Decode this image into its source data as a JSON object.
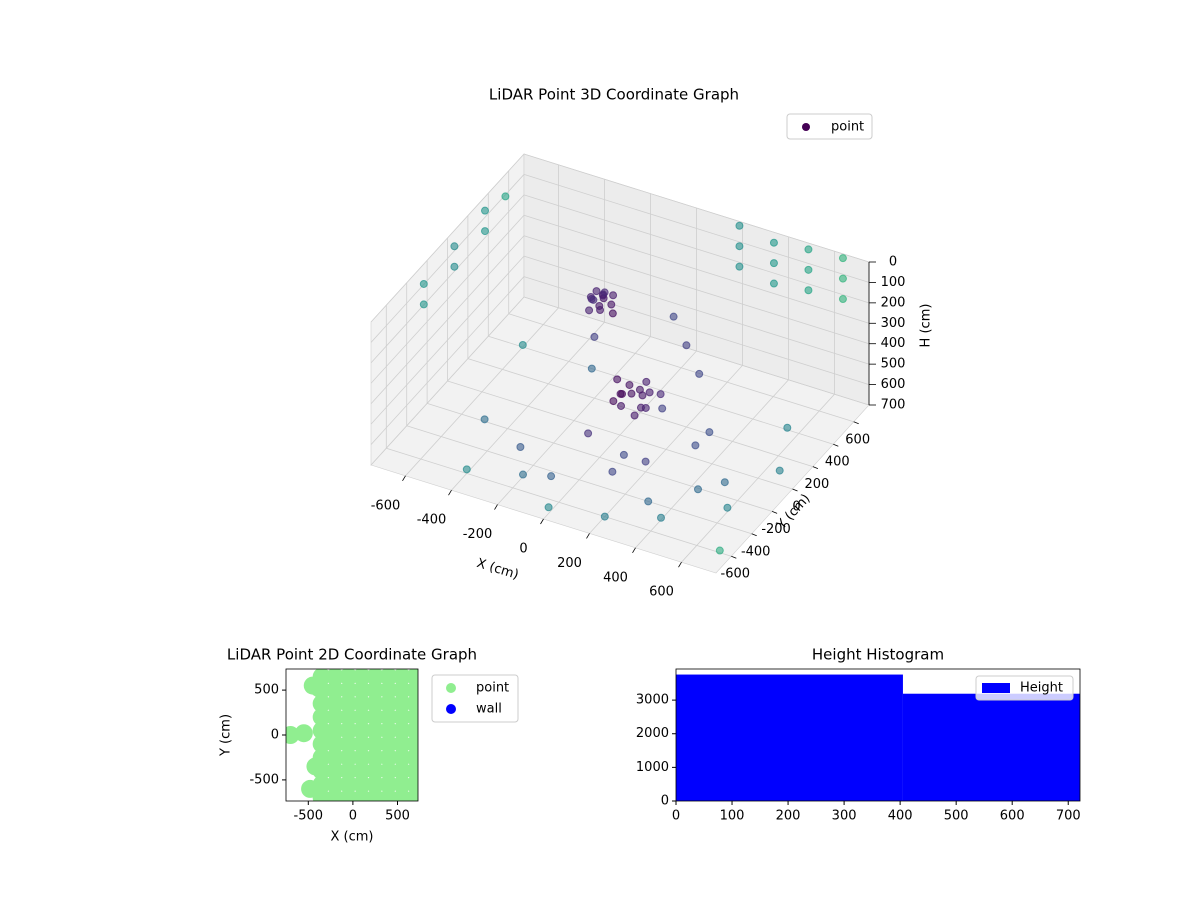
{
  "chart_data": [
    {
      "type": "scatter3d",
      "title": "LiDAR Point 3D Coordinate Graph",
      "xlabel": "X (cm)",
      "ylabel": "Y (cm)",
      "zlabel": "H (cm)",
      "xlim": [
        -750,
        750
      ],
      "ylim": [
        -750,
        750
      ],
      "zlim": [
        0,
        700
      ],
      "z_inverted": true,
      "xticks": [
        -600,
        -400,
        -200,
        0,
        200,
        400,
        600
      ],
      "yticks": [
        -600,
        -400,
        -200,
        0,
        200,
        400,
        600
      ],
      "zticks": [
        0,
        100,
        200,
        300,
        400,
        500,
        600,
        700
      ],
      "grid": true,
      "colormap": "viridis",
      "legend": "upper right",
      "series": [
        {
          "name": "point",
          "color": "#440154",
          "x": [
            -120,
            -100,
            -80,
            -140,
            -110,
            -60,
            -150,
            -90,
            -130,
            -70,
            -100,
            -160,
            -40,
            -120,
            50,
            80,
            20,
            100,
            60,
            0,
            120,
            40,
            150,
            -20,
            90,
            70,
            130,
            10,
            -30,
            200,
            200,
            200,
            350,
            350,
            350,
            500,
            500,
            500,
            650,
            650,
            650,
            -720,
            -720,
            -720,
            -720,
            -720,
            -720,
            -720,
            -400,
            -200,
            0,
            200,
            400,
            600,
            500,
            300,
            -300,
            -500,
            100,
            300,
            700,
            650,
            -100,
            450,
            200,
            -600,
            -300,
            550,
            200,
            300,
            100,
            -200,
            250,
            350,
            150,
            -50
          ],
          "y": [
            40,
            60,
            20,
            30,
            80,
            50,
            60,
            0,
            -10,
            90,
            30,
            100,
            20,
            120,
            0,
            40,
            -40,
            -20,
            60,
            20,
            20,
            -80,
            60,
            -20,
            -60,
            100,
            -40,
            70,
            40,
            720,
            720,
            720,
            720,
            720,
            720,
            720,
            720,
            720,
            720,
            720,
            720,
            -300,
            -300,
            0,
            0,
            300,
            300,
            500,
            -600,
            -500,
            -700,
            -600,
            -500,
            -300,
            -100,
            200,
            -300,
            -200,
            -300,
            -400,
            -600,
            100,
            -450,
            -250,
            -200,
            400,
            400,
            400,
            200,
            100,
            300,
            200,
            -150,
            -50,
            -300,
            -200
          ],
          "z": [
            60,
            80,
            70,
            90,
            100,
            110,
            120,
            100,
            130,
            90,
            140,
            150,
            130,
            110,
            480,
            500,
            470,
            520,
            490,
            510,
            460,
            500,
            480,
            530,
            540,
            470,
            500,
            490,
            460,
            0,
            100,
            200,
            30,
            130,
            230,
            10,
            110,
            210,
            0,
            100,
            200,
            50,
            150,
            30,
            130,
            20,
            120,
            60,
            680,
            690,
            670,
            700,
            690,
            680,
            700,
            690,
            700,
            690,
            680,
            700,
            690,
            700,
            690,
            670,
            650,
            690,
            700,
            690,
            300,
            350,
            250,
            400,
            400,
            600,
            580,
            600
          ]
        }
      ]
    },
    {
      "type": "scatter",
      "title": "LiDAR Point 2D Coordinate Graph",
      "xlabel": "X (cm)",
      "ylabel": "Y (cm)",
      "xlim": [
        -750,
        730
      ],
      "ylim": [
        -735,
        735
      ],
      "xticks": [
        -500,
        0,
        500
      ],
      "yticks": [
        -500,
        0,
        500
      ],
      "legend": "outside right",
      "series": [
        {
          "name": "point",
          "color": "#90ee90",
          "x": [
            -350,
            -350,
            -350,
            -350,
            -350,
            -350,
            -350,
            -350,
            -350,
            -350,
            -200,
            -200,
            -200,
            -200,
            -200,
            -200,
            -200,
            -200,
            -200,
            -200,
            -50,
            -50,
            -50,
            -50,
            -50,
            -50,
            -50,
            -50,
            -50,
            -50,
            100,
            100,
            100,
            100,
            100,
            100,
            100,
            100,
            100,
            100,
            250,
            250,
            250,
            250,
            250,
            250,
            250,
            250,
            250,
            250,
            400,
            400,
            400,
            400,
            400,
            400,
            400,
            400,
            400,
            400,
            550,
            550,
            550,
            550,
            550,
            550,
            550,
            550,
            550,
            550,
            700,
            700,
            700,
            700,
            700,
            700,
            700,
            700,
            700,
            700,
            -700,
            -550,
            -280,
            -450,
            -380,
            -480,
            -420
          ],
          "y": [
            -700,
            -550,
            -400,
            -250,
            -100,
            50,
            200,
            350,
            500,
            650,
            -700,
            -550,
            -400,
            -250,
            -100,
            50,
            200,
            350,
            500,
            650,
            -700,
            -550,
            -400,
            -250,
            -100,
            50,
            200,
            350,
            500,
            650,
            -700,
            -550,
            -400,
            -250,
            -100,
            50,
            200,
            350,
            500,
            650,
            -700,
            -550,
            -400,
            -250,
            -100,
            50,
            200,
            350,
            500,
            650,
            -700,
            -550,
            -400,
            -250,
            -100,
            50,
            200,
            350,
            500,
            650,
            -700,
            -550,
            -400,
            -250,
            -100,
            50,
            200,
            350,
            500,
            650,
            -700,
            -550,
            -400,
            -250,
            -100,
            50,
            200,
            350,
            500,
            650,
            0,
            20,
            0,
            550,
            520,
            -600,
            -350
          ]
        },
        {
          "name": "wall",
          "color": "#0000ff",
          "x": [],
          "y": []
        }
      ]
    },
    {
      "type": "histogram",
      "title": "Height Histogram",
      "xlim": [
        0,
        721
      ],
      "ylim": [
        0,
        3925
      ],
      "xticks": [
        0,
        100,
        200,
        300,
        400,
        500,
        600,
        700
      ],
      "yticks": [
        0,
        1000,
        2000,
        3000
      ],
      "legend": "upper right",
      "series": [
        {
          "name": "Height",
          "color": "#0000ff",
          "bins": [
            0,
            405,
            721
          ],
          "values": [
            3760,
            3190
          ]
        }
      ]
    }
  ]
}
